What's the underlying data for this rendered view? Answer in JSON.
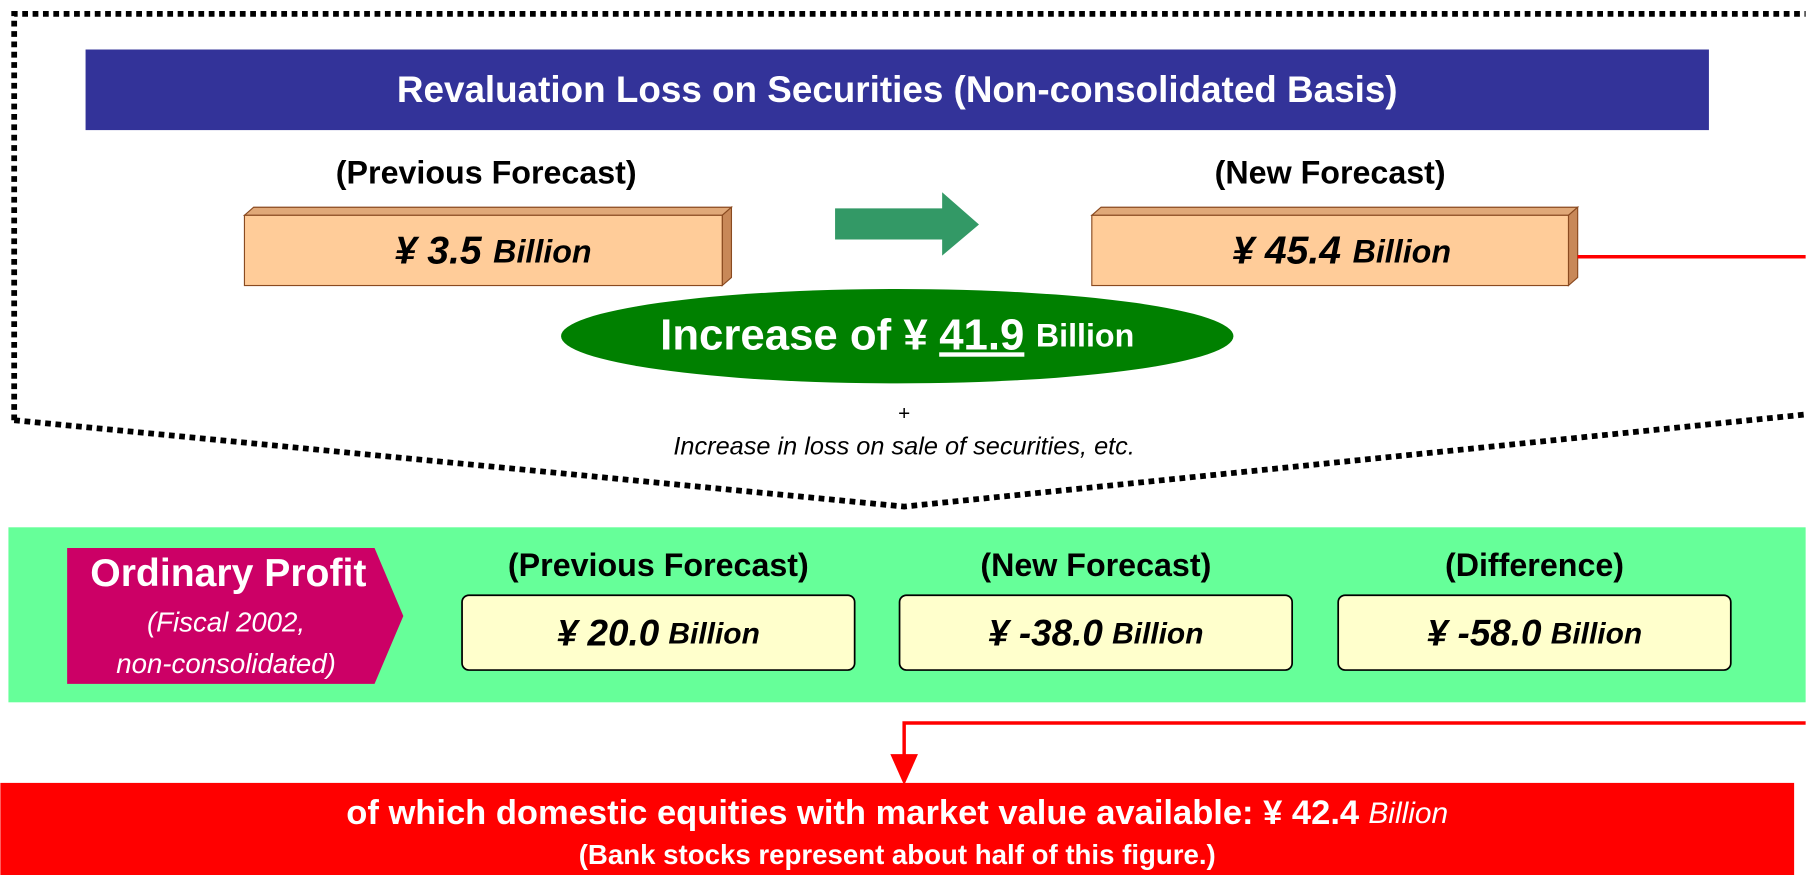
{
  "title": "Revaluation Loss on Securities (Non-consolidated Basis)",
  "revaluation": {
    "previous": {
      "label": "(Previous Forecast)",
      "amount": "¥ 3.5",
      "unit": "Billion"
    },
    "new": {
      "label": "(New Forecast)",
      "amount": "¥ 45.4",
      "unit": "Billion"
    },
    "increase": {
      "prefix": "Increase of  ¥",
      "amount": "41.9",
      "unit": "Billion"
    },
    "plus": "+",
    "note": "Increase in loss on sale of securities, etc."
  },
  "ordinary_profit": {
    "title": "Ordinary Profit",
    "subtitle": [
      "(Fiscal 2002,",
      "non-consolidated)"
    ],
    "boxes": [
      {
        "label": "(Previous Forecast)",
        "amount": "¥ 20.0",
        "unit": "Billion"
      },
      {
        "label": "(New Forecast)",
        "amount": "¥ -38.0",
        "unit": "Billion"
      },
      {
        "label": "(Difference)",
        "amount": "¥ -58.0",
        "unit": "Billion"
      }
    ]
  },
  "footer": {
    "line1": "of which domestic equities with market value available: ¥ 42.4",
    "unit": "Billion",
    "line2": "(Bank stocks represent about half of this figure.)"
  }
}
